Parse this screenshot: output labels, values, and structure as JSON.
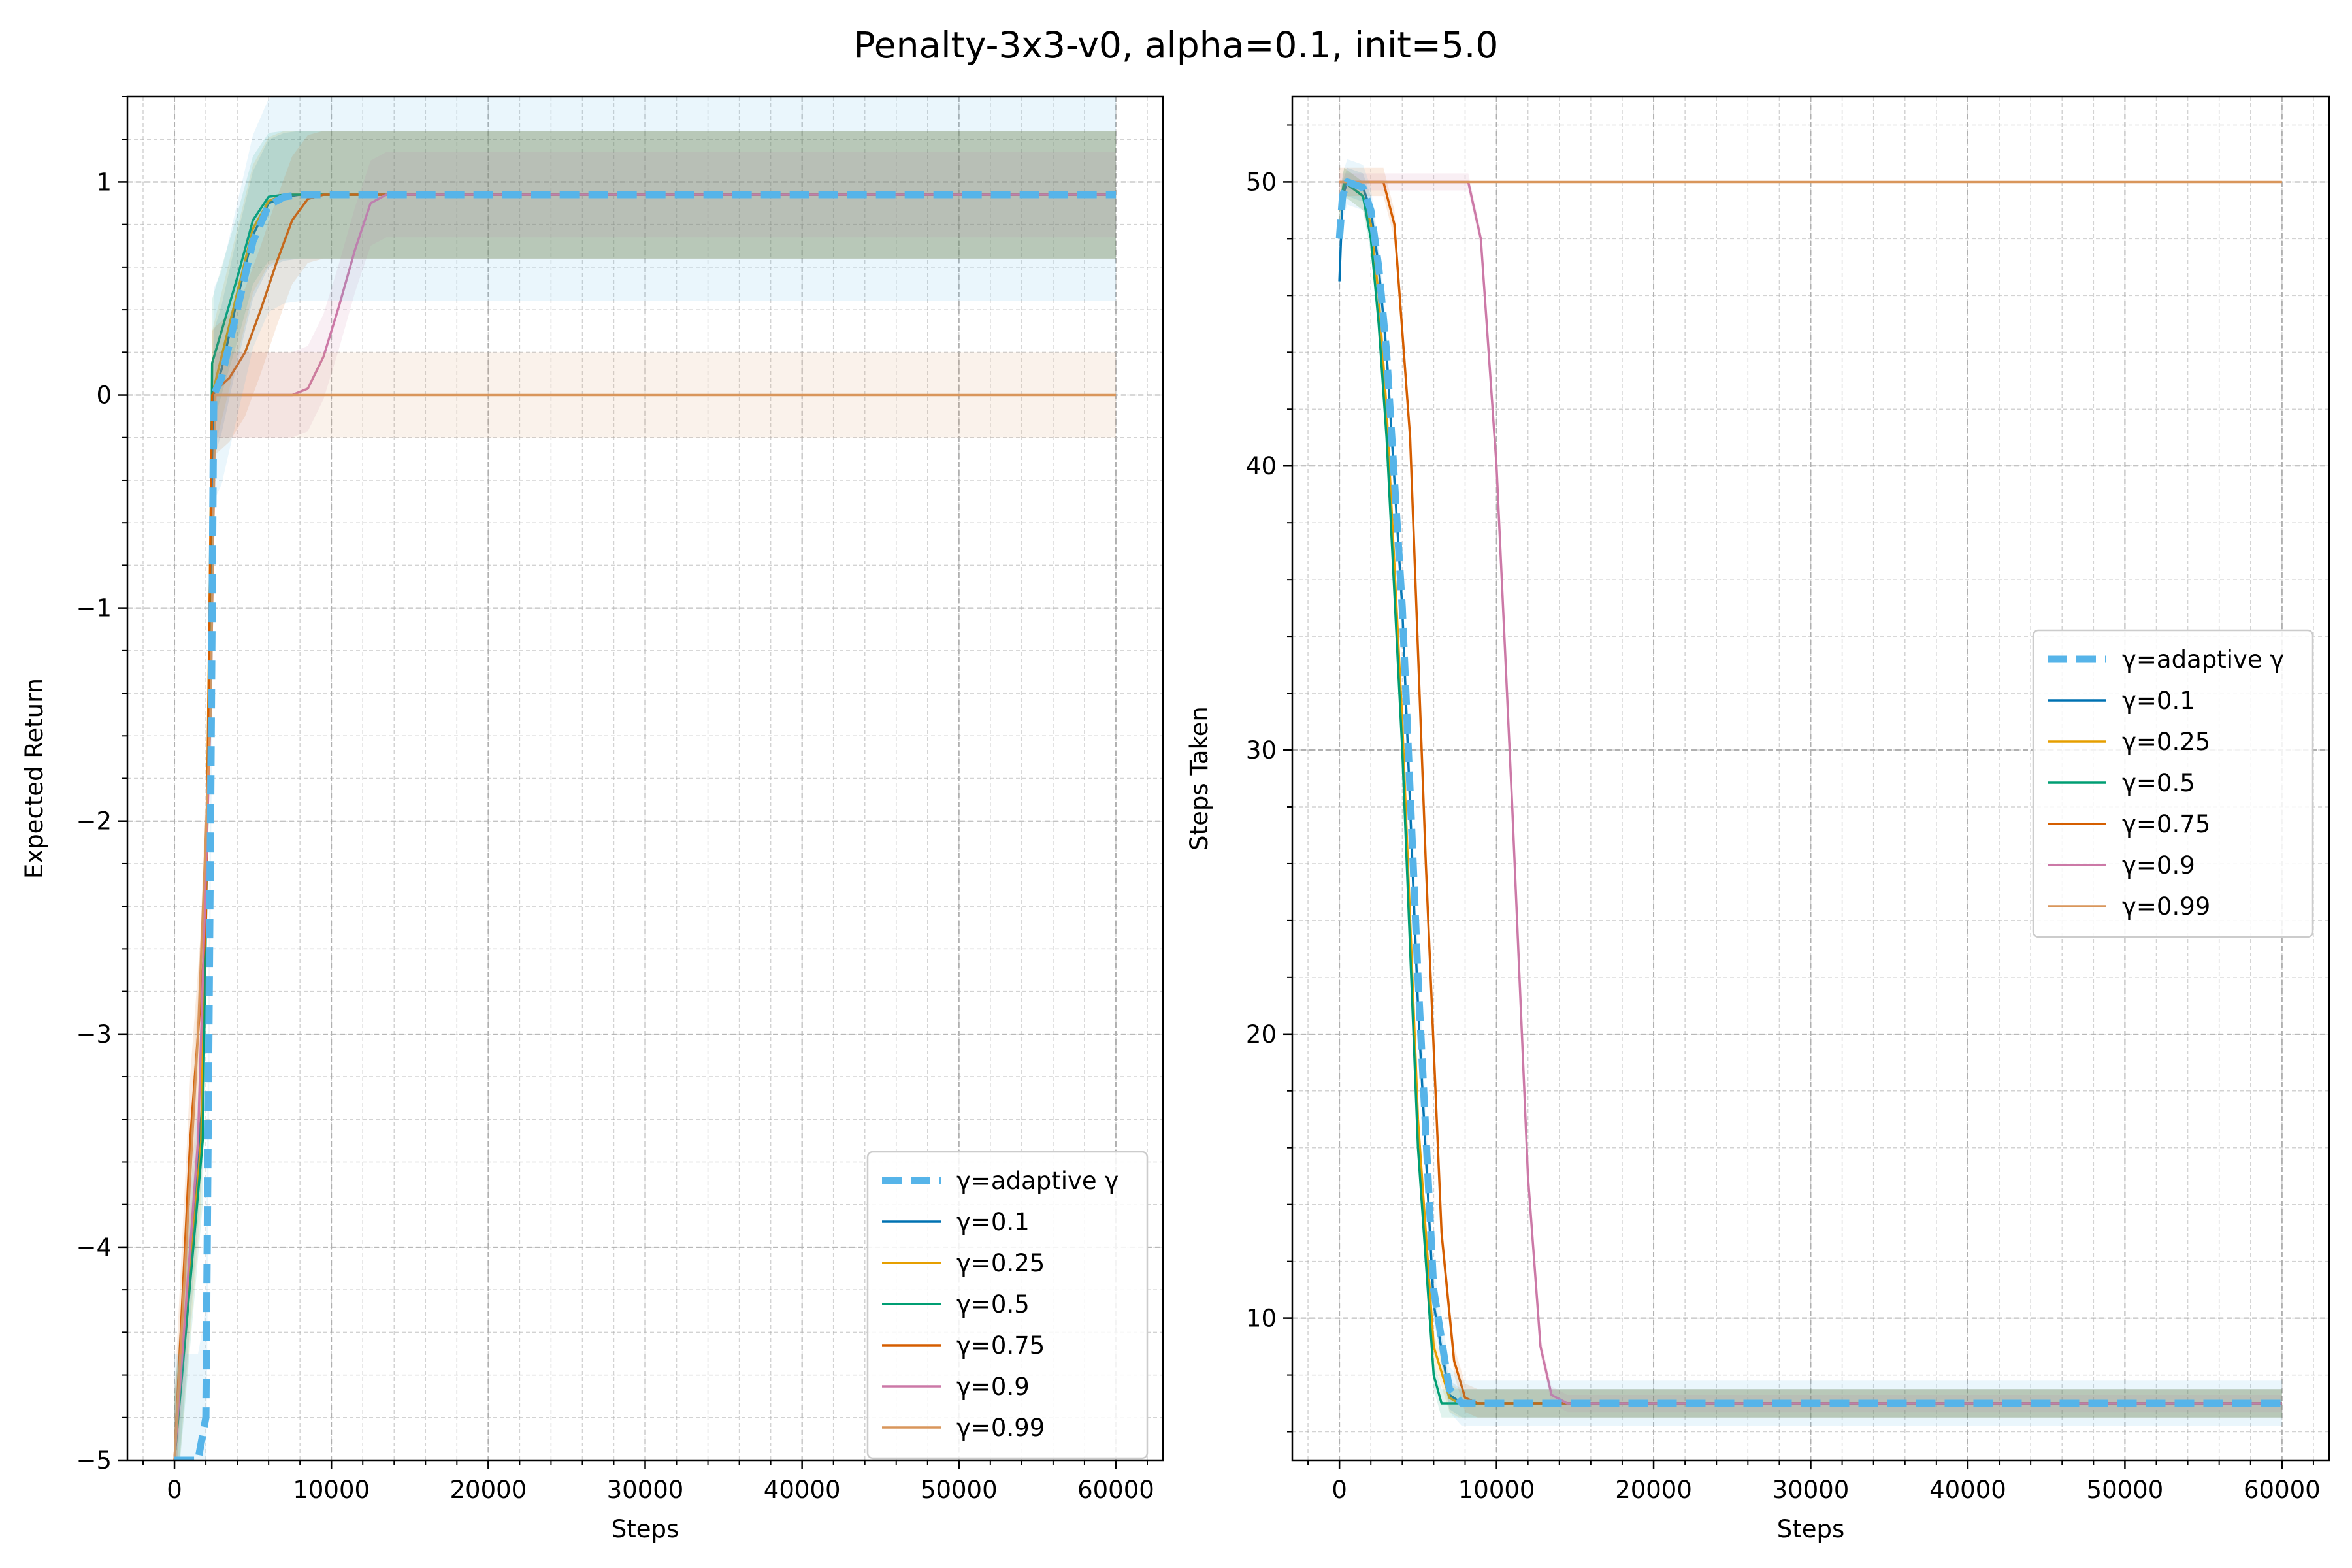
{
  "figure": {
    "title": "Penalty-3x3-v0, alpha=0.1, init=5.0"
  },
  "colors": {
    "adaptive": "#56B4E9",
    "g0.1": "#0072B2",
    "g0.25": "#E69F00",
    "g0.5": "#009E73",
    "g0.75": "#D55E00",
    "g0.9": "#CC79A7",
    "g0.99": "#D9965B",
    "grid": "#b0b0b0"
  },
  "chart_data": [
    {
      "type": "line",
      "title": "",
      "xlabel": "Steps",
      "ylabel": "Expected Return",
      "xlim": [
        -3000,
        63000
      ],
      "ylim": [
        -5,
        1.4
      ],
      "xticks": [
        0,
        10000,
        20000,
        30000,
        40000,
        50000,
        60000
      ],
      "xtick_labels": [
        "0",
        "10000",
        "20000",
        "30000",
        "40000",
        "50000",
        "60000"
      ],
      "yticks": [
        -5,
        -4,
        -3,
        -2,
        -1,
        0,
        1
      ],
      "ytick_labels": [
        "−5",
        "−4",
        "−3",
        "−2",
        "−1",
        "0",
        "1"
      ],
      "grid": true,
      "minor_grid": true,
      "legend_position": "lower-right",
      "series": [
        {
          "name": "γ=adaptive γ",
          "color_key": "adaptive",
          "dashed": true,
          "band": 0.5,
          "x": [
            0,
            1500,
            2000,
            2300,
            2500,
            3000,
            4000,
            5000,
            6000,
            7000,
            8000,
            60000
          ],
          "y": [
            -5,
            -5,
            -4.8,
            -2,
            0,
            0.08,
            0.4,
            0.72,
            0.89,
            0.93,
            0.94,
            0.94
          ]
        },
        {
          "name": "γ=0.1",
          "color_key": "g0.1",
          "dashed": false,
          "band": 0.3,
          "x": [
            0,
            1800,
            2200,
            2500,
            3000,
            4000,
            5000,
            6000,
            7000,
            8000,
            60000
          ],
          "y": [
            -5,
            -3.3,
            -1.5,
            0,
            0.12,
            0.45,
            0.75,
            0.9,
            0.93,
            0.94,
            0.94
          ]
        },
        {
          "name": "γ=0.25",
          "color_key": "g0.25",
          "dashed": false,
          "band": 0.3,
          "x": [
            0,
            1700,
            2100,
            2400,
            3000,
            4000,
            5000,
            6000,
            7000,
            8000,
            60000
          ],
          "y": [
            -5,
            -3.5,
            -1.8,
            0,
            0.18,
            0.48,
            0.78,
            0.91,
            0.94,
            0.94,
            0.94
          ]
        },
        {
          "name": "γ=0.5",
          "color_key": "g0.5",
          "dashed": false,
          "band": 0.3,
          "x": [
            0,
            1800,
            2200,
            2400,
            3000,
            4000,
            5000,
            6000,
            7000,
            60000
          ],
          "y": [
            -5,
            -3.5,
            -1.5,
            0.15,
            0.3,
            0.55,
            0.82,
            0.93,
            0.94,
            0.94
          ]
        },
        {
          "name": "γ=0.75",
          "color_key": "g0.75",
          "dashed": false,
          "band": 0.3,
          "x": [
            0,
            1000,
            2000,
            2400,
            2600,
            3500,
            4500,
            5500,
            6500,
            7500,
            8500,
            9500,
            60000
          ],
          "y": [
            -5,
            -3.5,
            -2.5,
            0,
            0.02,
            0.08,
            0.2,
            0.4,
            0.62,
            0.82,
            0.92,
            0.94,
            0.94
          ]
        },
        {
          "name": "γ=0.9",
          "color_key": "g0.9",
          "dashed": false,
          "band": 0.2,
          "x": [
            0,
            1500,
            2300,
            2600,
            7500,
            8500,
            9500,
            10500,
            11500,
            12500,
            13500,
            60000
          ],
          "y": [
            -5,
            -3.5,
            -1.5,
            0,
            0,
            0.03,
            0.18,
            0.42,
            0.68,
            0.9,
            0.94,
            0.94
          ]
        },
        {
          "name": "γ=0.99",
          "color_key": "g0.99",
          "dashed": false,
          "band": 0.2,
          "x": [
            0,
            1500,
            2300,
            2600,
            60000
          ],
          "y": [
            -5,
            -3,
            -1.5,
            0,
            0
          ]
        }
      ]
    },
    {
      "type": "line",
      "title": "",
      "xlabel": "Steps",
      "ylabel": "Steps Taken",
      "xlim": [
        -3000,
        63000
      ],
      "ylim": [
        5,
        53
      ],
      "xticks": [
        0,
        10000,
        20000,
        30000,
        40000,
        50000,
        60000
      ],
      "xtick_labels": [
        "0",
        "10000",
        "20000",
        "30000",
        "40000",
        "50000",
        "60000"
      ],
      "yticks": [
        10,
        20,
        30,
        40,
        50
      ],
      "ytick_labels": [
        "10",
        "20",
        "30",
        "40",
        "50"
      ],
      "grid": true,
      "minor_grid": true,
      "legend_position": "center-right",
      "series": [
        {
          "name": "γ=adaptive γ",
          "color_key": "adaptive",
          "dashed": true,
          "band": 0.8,
          "x": [
            0,
            200,
            500,
            1500,
            2000,
            2500,
            3000,
            4000,
            5000,
            6000,
            7000,
            7800,
            8500,
            60000
          ],
          "y": [
            48,
            49.5,
            50,
            49.8,
            49,
            47,
            44,
            35,
            22,
            11,
            7.5,
            7,
            7,
            7
          ]
        },
        {
          "name": "γ=0.1",
          "color_key": "g0.1",
          "dashed": false,
          "band": 0.5,
          "x": [
            0,
            200,
            500,
            1500,
            2000,
            2500,
            3000,
            4000,
            5000,
            6000,
            7000,
            7800,
            8500,
            60000
          ],
          "y": [
            46.5,
            49.5,
            50,
            49.8,
            49,
            47,
            44,
            35,
            21,
            10.5,
            7.3,
            7,
            7,
            7
          ]
        },
        {
          "name": "γ=0.25",
          "color_key": "g0.25",
          "dashed": false,
          "band": 0.5,
          "x": [
            0,
            300,
            1500,
            2000,
            2500,
            3000,
            4000,
            5000,
            6000,
            7000,
            7600,
            8500,
            60000
          ],
          "y": [
            49,
            50,
            49.5,
            48.5,
            46,
            42,
            31,
            17,
            9,
            7.2,
            7,
            7,
            7
          ]
        },
        {
          "name": "γ=0.5",
          "color_key": "g0.5",
          "dashed": false,
          "band": 0.5,
          "x": [
            0,
            300,
            1500,
            2000,
            2500,
            3000,
            4000,
            5000,
            6000,
            6500,
            7500,
            60000
          ],
          "y": [
            49,
            50,
            49.5,
            48,
            45,
            41,
            30,
            16,
            8,
            7,
            7,
            7
          ]
        },
        {
          "name": "γ=0.75",
          "color_key": "g0.75",
          "dashed": false,
          "band": 0.5,
          "x": [
            0,
            2000,
            2800,
            3500,
            4500,
            5500,
            6500,
            7300,
            8000,
            8800,
            60000
          ],
          "y": [
            50,
            50,
            50,
            48.5,
            41,
            26,
            13,
            8.5,
            7.2,
            7,
            7
          ]
        },
        {
          "name": "γ=0.9",
          "color_key": "g0.9",
          "dashed": false,
          "band": 0.3,
          "x": [
            0,
            7500,
            8200,
            9000,
            10000,
            11000,
            12000,
            12800,
            13500,
            14500,
            60000
          ],
          "y": [
            50,
            50,
            50,
            48,
            40,
            28,
            15,
            9,
            7.3,
            7,
            7
          ]
        },
        {
          "name": "γ=0.99",
          "color_key": "g0.99",
          "dashed": false,
          "band": 0.0,
          "x": [
            0,
            60000
          ],
          "y": [
            50,
            50
          ]
        }
      ]
    }
  ]
}
